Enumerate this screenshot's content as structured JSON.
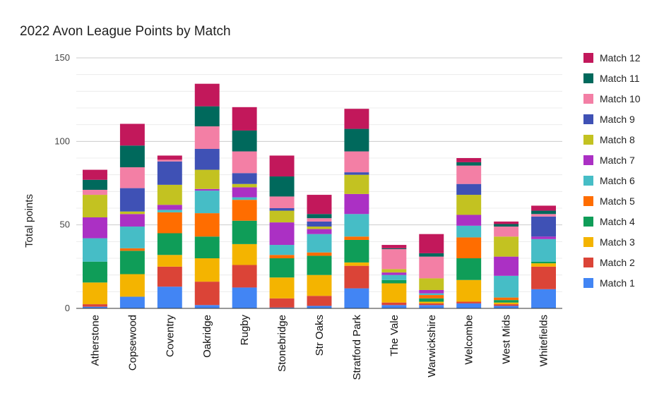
{
  "chart_data": {
    "type": "bar",
    "stacked": true,
    "title": "2022 Avon League Points by Match",
    "xlabel": "",
    "ylabel": "Total points",
    "ylim": [
      0,
      150
    ],
    "yticks": [
      0,
      50,
      100,
      150
    ],
    "grid": true,
    "legend": "right",
    "categories": [
      "Atherstone",
      "Copsewood",
      "Coventry",
      "Oakridge",
      "Rugby",
      "Stonebridge",
      "Str Oaks",
      "Stratford Park",
      "The Vale",
      "Warwickshire",
      "Welcombe",
      "West Mids",
      "Whitefields"
    ],
    "series": [
      {
        "name": "Match 1",
        "color": "#4285f4",
        "values": [
          1,
          7,
          13,
          2,
          12.5,
          0.5,
          1.5,
          12,
          2,
          2,
          3,
          1.5,
          11.5
        ]
      },
      {
        "name": "Match 2",
        "color": "#db4437",
        "values": [
          1.5,
          0,
          12,
          14,
          13.5,
          5.5,
          6,
          13.5,
          1.5,
          1,
          1,
          1,
          13.5
        ]
      },
      {
        "name": "Match 3",
        "color": "#f4b400",
        "values": [
          13,
          13.5,
          7,
          14,
          12.5,
          12.5,
          12.5,
          2,
          11.5,
          1,
          13,
          1,
          2
        ]
      },
      {
        "name": "Match 4",
        "color": "#0f9d58",
        "values": [
          12.5,
          14,
          13,
          13,
          14,
          11.5,
          11.5,
          13.5,
          2,
          2,
          13,
          1.5,
          1
        ]
      },
      {
        "name": "Match 5",
        "color": "#ff6d00",
        "values": [
          0,
          1.5,
          12.5,
          14,
          12.5,
          2,
          2,
          2,
          0,
          2,
          12.5,
          1.5,
          0
        ]
      },
      {
        "name": "Match 6",
        "color": "#46bdc6",
        "values": [
          14,
          13,
          1.5,
          13.5,
          1.5,
          6,
          11,
          13.5,
          3,
          1,
          7,
          13,
          13.5
        ]
      },
      {
        "name": "Match 7",
        "color": "#ab30c4",
        "values": [
          12.5,
          7.5,
          3,
          1,
          6,
          13.5,
          3,
          12,
          1.5,
          2,
          6.5,
          11.5,
          1.5
        ]
      },
      {
        "name": "Match 8",
        "color": "#c3c221",
        "values": [
          13.5,
          1.5,
          12,
          11.5,
          2,
          7,
          1.5,
          11.5,
          2,
          7,
          12,
          12,
          0
        ]
      },
      {
        "name": "Match 9",
        "color": "#3f51b5",
        "values": [
          0,
          14,
          14,
          12.5,
          6.5,
          1.5,
          3,
          1.5,
          0,
          0,
          6.5,
          0,
          12
        ]
      },
      {
        "name": "Match 10",
        "color": "#f37fa5",
        "values": [
          3,
          12.5,
          1,
          13.5,
          13,
          7,
          2,
          12.5,
          12,
          13,
          11,
          6,
          1.5
        ]
      },
      {
        "name": "Match 11",
        "color": "#00695c",
        "values": [
          6,
          13,
          0,
          12,
          12.5,
          12,
          2.5,
          13.5,
          0.5,
          2,
          2,
          1.5,
          2
        ]
      },
      {
        "name": "Match 12",
        "color": "#c2185b",
        "values": [
          6,
          13,
          2.5,
          13.5,
          14,
          12.5,
          11.5,
          12,
          2,
          11.5,
          2.5,
          1.5,
          3
        ]
      }
    ]
  }
}
